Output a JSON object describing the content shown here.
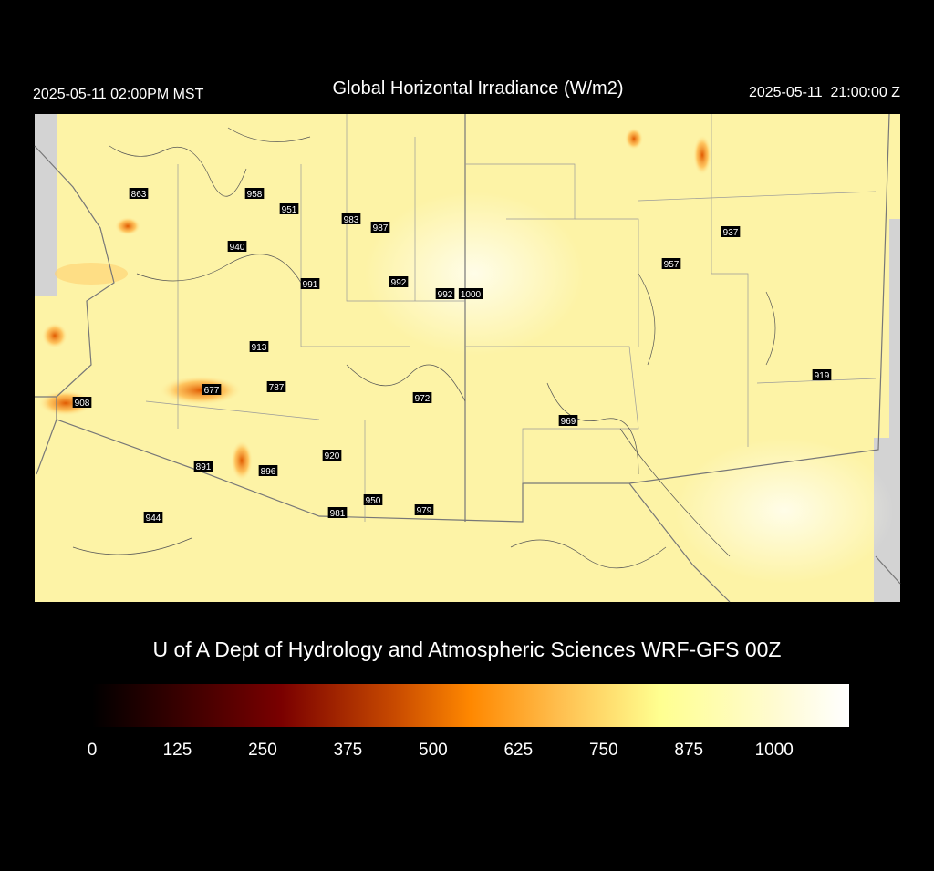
{
  "header": {
    "local_time": "2025-05-11 02:00PM MST",
    "title": "Global Horizontal Irradiance (W/m2)",
    "utc_time": "2025-05-11_21:00:00 Z"
  },
  "stations": [
    863,
    958,
    951,
    983,
    987,
    940,
    991,
    992,
    992,
    1000,
    913,
    677,
    787,
    908,
    972,
    920,
    891,
    896,
    950,
    981,
    979,
    944,
    969,
    957,
    937,
    919
  ],
  "footer": "U of A Dept of Hydrology and Atmospheric Sciences WRF-GFS 00Z",
  "colorbar": {
    "range": [
      0,
      1110
    ],
    "ticks": [
      0,
      125,
      250,
      375,
      500,
      625,
      750,
      875,
      1000
    ]
  }
}
